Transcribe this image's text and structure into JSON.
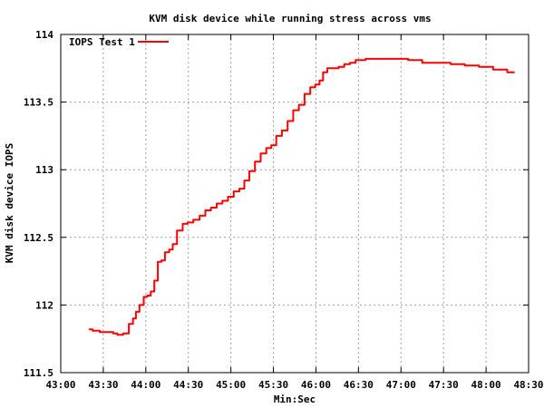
{
  "chart_data": {
    "type": "line",
    "title": "KVM disk device while running stress across vms",
    "xlabel": "Min:Sec",
    "ylabel": "KVM disk device IOPS",
    "xlim": [
      0,
      330
    ],
    "ylim": [
      111.5,
      114
    ],
    "grid": true,
    "legend_position": "top-left",
    "x_tick_values": [
      0,
      30,
      60,
      90,
      120,
      150,
      180,
      210,
      240,
      270,
      300,
      330
    ],
    "x_tick_labels": [
      "43:00",
      "43:30",
      "44:00",
      "44:30",
      "45:00",
      "45:30",
      "46:00",
      "46:30",
      "47:00",
      "47:30",
      "48:00",
      "48:30"
    ],
    "y_tick_values": [
      111.5,
      112,
      112.5,
      113,
      113.5,
      114
    ],
    "y_tick_labels": [
      "111.5",
      "112",
      "112.5",
      "113",
      "113.5",
      "114"
    ],
    "series": [
      {
        "name": "IOPS Test 1",
        "color": "#ff0000",
        "x": [
          20,
          25,
          30,
          36,
          38,
          42,
          46,
          50,
          52,
          54,
          57,
          60,
          62,
          65,
          67,
          70,
          72,
          75,
          78,
          80,
          84,
          88,
          91,
          96,
          100,
          104,
          108,
          112,
          116,
          120,
          124,
          128,
          131,
          135,
          139,
          143,
          147,
          150,
          154,
          158,
          162,
          166,
          170,
          174,
          178,
          181,
          184,
          186,
          190,
          194,
          198,
          202,
          206,
          210,
          220,
          230,
          240,
          250,
          260,
          270,
          280,
          290,
          300,
          310,
          320
        ],
        "y": [
          111.82,
          111.81,
          111.8,
          111.8,
          111.79,
          111.78,
          111.79,
          111.86,
          111.9,
          111.95,
          112.0,
          112.06,
          112.07,
          112.1,
          112.18,
          112.32,
          112.33,
          112.39,
          112.41,
          112.45,
          112.55,
          112.6,
          112.61,
          112.63,
          112.66,
          112.7,
          112.72,
          112.75,
          112.77,
          112.8,
          112.84,
          112.86,
          112.92,
          112.99,
          113.06,
          113.12,
          113.16,
          113.18,
          113.25,
          113.29,
          113.36,
          113.44,
          113.48,
          113.56,
          113.61,
          113.63,
          113.66,
          113.72,
          113.75,
          113.75,
          113.76,
          113.78,
          113.79,
          113.81,
          113.82,
          113.82,
          113.82,
          113.81,
          113.79,
          113.79,
          113.78,
          113.77,
          113.76,
          113.74,
          113.72
        ]
      }
    ]
  }
}
